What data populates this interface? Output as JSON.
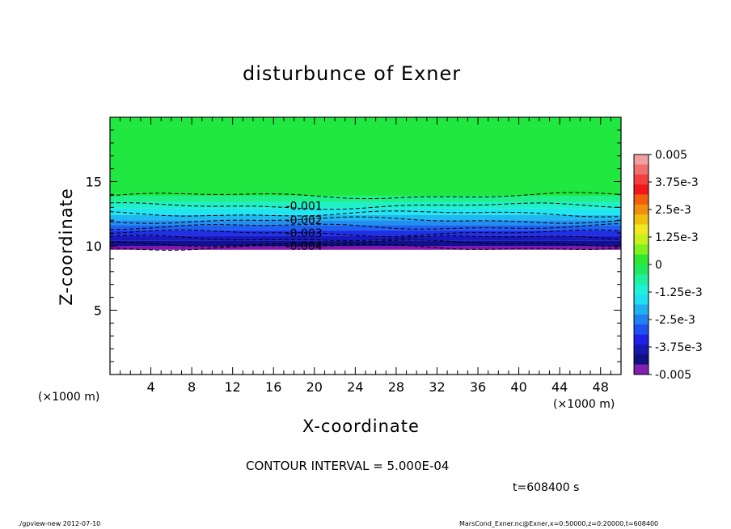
{
  "chart_data": {
    "type": "heatmap",
    "title": "disturbunce of Exner",
    "xlabel": "X-coordinate",
    "ylabel": "Z-coordinate",
    "x_unit_label": "(×1000 m)",
    "z_unit_label": "(×1000 m)",
    "xlim": [
      0,
      50
    ],
    "zlim": [
      0,
      20
    ],
    "x_ticks": [
      4,
      8,
      12,
      16,
      20,
      24,
      28,
      32,
      36,
      40,
      44,
      48
    ],
    "z_ticks": [
      5,
      10,
      15
    ],
    "contour_interval_text": "CONTOUR INTERVAL = 5.000E-04",
    "time_text": "t=608400  s",
    "contour_labels": [
      {
        "text": "-0.001",
        "x": 19.0,
        "z": 13.1
      },
      {
        "text": "-0.002",
        "x": 19.0,
        "z": 12.0
      },
      {
        "text": "-0.003",
        "x": 19.0,
        "z": 11.0
      },
      {
        "text": "-0.004",
        "x": 19.0,
        "z": 10.0
      }
    ],
    "contour_levels_z": [
      13.9,
      13.1,
      12.5,
      12.0,
      11.5,
      11.0,
      10.6,
      10.2,
      9.9
    ],
    "fill_bands": [
      {
        "z_top": 20.0,
        "z_bot": 13.9,
        "color": "#20e840"
      },
      {
        "z_top": 13.9,
        "z_bot": 13.4,
        "color": "#20f08c"
      },
      {
        "z_top": 13.4,
        "z_bot": 12.9,
        "color": "#20f0c8"
      },
      {
        "z_top": 12.9,
        "z_bot": 12.4,
        "color": "#20e6f0"
      },
      {
        "z_top": 12.4,
        "z_bot": 12.0,
        "color": "#20b8f0"
      },
      {
        "z_top": 12.0,
        "z_bot": 11.6,
        "color": "#2090f0"
      },
      {
        "z_top": 11.6,
        "z_bot": 11.2,
        "color": "#2060f0"
      },
      {
        "z_top": 11.2,
        "z_bot": 10.8,
        "color": "#2030e8"
      },
      {
        "z_top": 10.8,
        "z_bot": 10.4,
        "color": "#1818c0"
      },
      {
        "z_top": 10.4,
        "z_bot": 10.0,
        "color": "#101090"
      },
      {
        "z_top": 10.0,
        "z_bot": 9.7,
        "color": "#8018b0"
      }
    ],
    "colorbar": {
      "tick_labels": [
        "0.005",
        "3.75e-3",
        "2.5e-3",
        "1.25e-3",
        "0",
        "-1.25e-3",
        "-2.5e-3",
        "-3.75e-3",
        "-0.005"
      ],
      "colors": [
        "#f0a0a0",
        "#f07070",
        "#f04040",
        "#f01818",
        "#f06010",
        "#f09010",
        "#f0c010",
        "#f0e820",
        "#c8f020",
        "#80f020",
        "#30e830",
        "#20e860",
        "#20f0a0",
        "#20f0d8",
        "#20e0f0",
        "#20b0f0",
        "#2080f0",
        "#2050f0",
        "#2020e8",
        "#1818b0",
        "#101080",
        "#8020b0"
      ]
    }
  },
  "footer": {
    "left": "./gpview-new   2012-07-10",
    "right": "MarsCond_Exner.nc@Exner,x=0:50000,z=0:20000,t=608400"
  }
}
